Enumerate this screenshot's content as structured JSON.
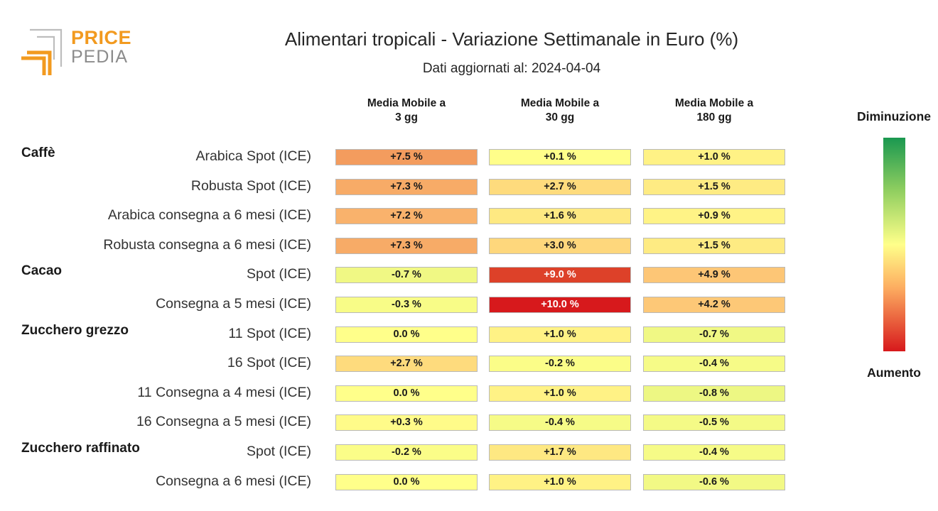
{
  "logo": {
    "word1": "PRICE",
    "word2": "PEDIA"
  },
  "title": "Alimentari tropicali - Variazione Settimanale in Euro (%)",
  "subtitle": "Dati aggiornati al: 2024-04-04",
  "legend": {
    "top": "Diminuzione",
    "bottom": "Aumento"
  },
  "colors": {
    "brand_orange": "#f29a1f",
    "brand_gray": "#8c8c8c"
  },
  "chart_data": {
    "type": "heatmap",
    "title": "Alimentari tropicali - Variazione Settimanale in Euro (%)",
    "columns": [
      "Media Mobile a\n3 gg",
      "Media Mobile a\n30 gg",
      "Media Mobile a\n180 gg"
    ],
    "groups": [
      {
        "name": "Caffè",
        "rows": [
          {
            "label": "Arabica Spot (ICE)",
            "values": [
              7.5,
              0.1,
              1.0
            ],
            "text": [
              "+7.5 %",
              "+0.1 %",
              "+1.0 %"
            ]
          },
          {
            "label": "Robusta Spot (ICE)",
            "values": [
              7.3,
              2.7,
              1.5
            ],
            "text": [
              "+7.3 %",
              "+2.7 %",
              "+1.5 %"
            ]
          },
          {
            "label": "Arabica consegna a 6 mesi (ICE)",
            "values": [
              7.2,
              1.6,
              0.9
            ],
            "text": [
              "+7.2 %",
              "+1.6 %",
              "+0.9 %"
            ]
          },
          {
            "label": "Robusta consegna a 6 mesi (ICE)",
            "values": [
              7.3,
              3.0,
              1.5
            ],
            "text": [
              "+7.3 %",
              "+3.0 %",
              "+1.5 %"
            ]
          }
        ]
      },
      {
        "name": "Cacao",
        "rows": [
          {
            "label": "Spot (ICE)",
            "values": [
              -0.7,
              9.0,
              4.9
            ],
            "text": [
              "-0.7 %",
              "+9.0 %",
              "+4.9 %"
            ]
          },
          {
            "label": "Consegna a 5 mesi (ICE)",
            "values": [
              -0.3,
              10.0,
              4.2
            ],
            "text": [
              "-0.3 %",
              "+10.0 %",
              "+4.2 %"
            ]
          }
        ]
      },
      {
        "name": "Zucchero grezzo",
        "rows": [
          {
            "label": "11 Spot (ICE)",
            "values": [
              0.0,
              1.0,
              -0.7
            ],
            "text": [
              "0.0 %",
              "+1.0 %",
              "-0.7 %"
            ]
          },
          {
            "label": "16 Spot (ICE)",
            "values": [
              2.7,
              -0.2,
              -0.4
            ],
            "text": [
              "+2.7 %",
              "-0.2 %",
              "-0.4 %"
            ]
          },
          {
            "label": "11 Consegna a 4 mesi (ICE)",
            "values": [
              0.0,
              1.0,
              -0.8
            ],
            "text": [
              "0.0 %",
              "+1.0 %",
              "-0.8 %"
            ]
          },
          {
            "label": "16 Consegna a 5 mesi (ICE)",
            "values": [
              0.3,
              -0.4,
              -0.5
            ],
            "text": [
              "+0.3 %",
              "-0.4 %",
              "-0.5 %"
            ]
          }
        ]
      },
      {
        "name": "Zucchero raffinato",
        "rows": [
          {
            "label": "Spot (ICE)",
            "values": [
              -0.2,
              1.7,
              -0.4
            ],
            "text": [
              "-0.2 %",
              "+1.7 %",
              "-0.4 %"
            ]
          },
          {
            "label": "Consegna a 6 mesi (ICE)",
            "values": [
              0.0,
              1.0,
              -0.6
            ],
            "text": [
              "0.0 %",
              "+1.0 %",
              "-0.6 %"
            ]
          }
        ]
      }
    ],
    "color_scale": {
      "low_color": "#1a9850",
      "mid_color": "#ffff8a",
      "high_color": "#d7191c",
      "low_label": "Diminuzione",
      "high_label": "Aumento"
    }
  }
}
